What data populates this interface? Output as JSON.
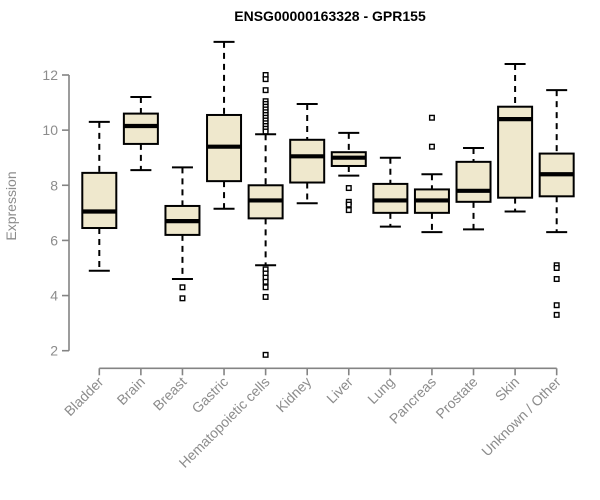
{
  "page": {
    "background": "#ffffff"
  },
  "chart_data": {
    "type": "boxplot",
    "title": "ENSG00000163328 - GPR155",
    "ylabel": "Expression",
    "xlabel": "",
    "yticks": [
      2,
      4,
      6,
      8,
      10,
      12
    ],
    "ylim": [
      1.6,
      13.4
    ],
    "grid": false,
    "legend": "none",
    "x_label_rotation_deg": 45,
    "colors": {
      "box_fill": "#efe8cd",
      "box_border": "#000000",
      "median": "#000000",
      "whisker": "#000000",
      "outlier": "#000000",
      "axis": "#848484",
      "tick_label": "#8c8c8c",
      "title": "#000000",
      "background": "#ffffff"
    },
    "categories": [
      "Bladder",
      "Brain",
      "Breast",
      "Gastric",
      "Hematopoietic cells",
      "Kidney",
      "Liver",
      "Lung",
      "Pancreas",
      "Prostate",
      "Skin",
      "Unknown / Other"
    ],
    "boxes": [
      {
        "label": "Bladder",
        "whisker_low": 4.9,
        "q1": 6.45,
        "median": 7.05,
        "q3": 8.45,
        "whisker_high": 10.3,
        "outliers": []
      },
      {
        "label": "Brain",
        "whisker_low": 8.55,
        "q1": 9.5,
        "median": 10.15,
        "q3": 10.6,
        "whisker_high": 11.2,
        "outliers": []
      },
      {
        "label": "Breast",
        "whisker_low": 4.6,
        "q1": 6.2,
        "median": 6.7,
        "q3": 7.25,
        "whisker_high": 8.65,
        "outliers": [
          4.3,
          3.9
        ]
      },
      {
        "label": "Gastric",
        "whisker_low": 7.15,
        "q1": 8.15,
        "median": 9.4,
        "q3": 10.55,
        "whisker_high": 13.2,
        "outliers": []
      },
      {
        "label": "Hematopoietic cells",
        "whisker_low": 5.1,
        "q1": 6.8,
        "median": 7.45,
        "q3": 8.0,
        "whisker_high": 9.85,
        "outliers": [
          12.0,
          11.85,
          11.45,
          11.05,
          10.95,
          10.85,
          10.75,
          10.65,
          10.55,
          10.45,
          10.35,
          10.25,
          10.15,
          10.05,
          9.95,
          4.95,
          4.8,
          4.65,
          4.5,
          4.3,
          3.95,
          1.85
        ]
      },
      {
        "label": "Kidney",
        "whisker_low": 7.35,
        "q1": 8.1,
        "median": 9.05,
        "q3": 9.65,
        "whisker_high": 10.95,
        "outliers": []
      },
      {
        "label": "Liver",
        "whisker_low": 8.35,
        "q1": 8.7,
        "median": 9.0,
        "q3": 9.2,
        "whisker_high": 9.9,
        "outliers": [
          7.9,
          7.4,
          7.3,
          7.1
        ]
      },
      {
        "label": "Lung",
        "whisker_low": 6.5,
        "q1": 7.0,
        "median": 7.45,
        "q3": 8.05,
        "whisker_high": 9.0,
        "outliers": []
      },
      {
        "label": "Pancreas",
        "whisker_low": 6.3,
        "q1": 7.0,
        "median": 7.45,
        "q3": 7.85,
        "whisker_high": 8.4,
        "outliers": [
          10.45,
          9.4
        ]
      },
      {
        "label": "Prostate",
        "whisker_low": 6.4,
        "q1": 7.4,
        "median": 7.8,
        "q3": 8.85,
        "whisker_high": 9.35,
        "outliers": []
      },
      {
        "label": "Skin",
        "whisker_low": 7.05,
        "q1": 7.55,
        "median": 10.4,
        "q3": 10.85,
        "whisker_high": 12.4,
        "outliers": []
      },
      {
        "label": "Unknown / Other",
        "whisker_low": 6.3,
        "q1": 7.6,
        "median": 8.4,
        "q3": 9.15,
        "whisker_high": 11.45,
        "outliers": [
          5.1,
          5.0,
          4.6,
          3.65,
          3.3
        ]
      }
    ]
  }
}
